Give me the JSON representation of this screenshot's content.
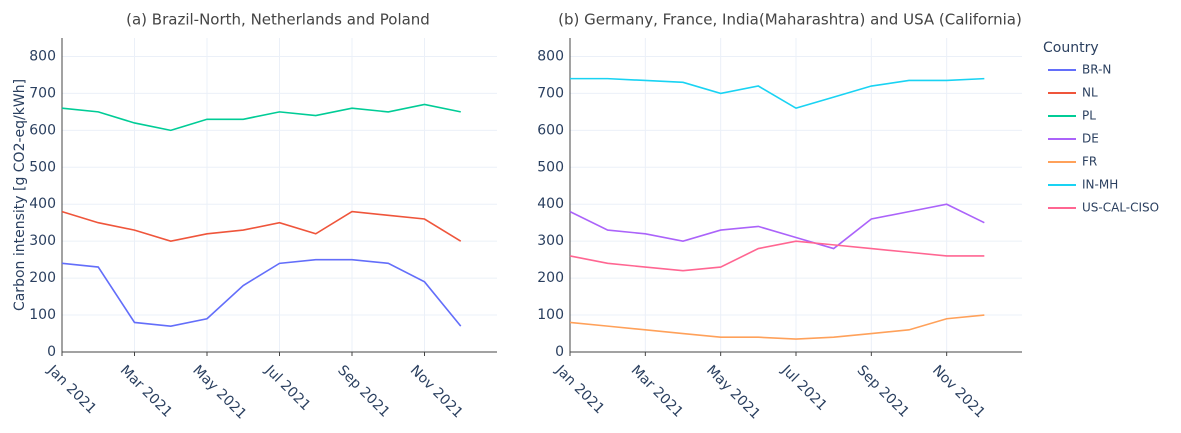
{
  "chart_data": [
    {
      "type": "line",
      "title": "(a) Brazil-North, Netherlands and Poland",
      "y_label": "Carbon intensity [g CO2-eq/kWh]",
      "x": [
        "2021-01",
        "2021-02",
        "2021-03",
        "2021-04",
        "2021-05",
        "2021-06",
        "2021-07",
        "2021-08",
        "2021-09",
        "2021-10",
        "2021-11",
        "2021-12"
      ],
      "xlim": [
        "2021-01",
        "2021-12"
      ],
      "xticks": [
        {
          "value": "2021-01",
          "label": "Jan 2021"
        },
        {
          "value": "2021-03",
          "label": "Mar 2021"
        },
        {
          "value": "2021-05",
          "label": "May 2021"
        },
        {
          "value": "2021-07",
          "label": "Jul 2021"
        },
        {
          "value": "2021-09",
          "label": "Sep 2021"
        },
        {
          "value": "2021-11",
          "label": "Nov 2021"
        }
      ],
      "ylim": [
        0,
        850
      ],
      "yticks": [
        0,
        100,
        200,
        300,
        400,
        500,
        600,
        700,
        800
      ],
      "grid": true,
      "series": [
        {
          "name": "BR-N",
          "color": "#636efa",
          "values": [
            240,
            230,
            80,
            70,
            90,
            180,
            240,
            250,
            250,
            240,
            190,
            70
          ]
        },
        {
          "name": "NL",
          "color": "#ef553b",
          "values": [
            380,
            350,
            330,
            300,
            320,
            330,
            350,
            320,
            380,
            370,
            360,
            300
          ]
        },
        {
          "name": "PL",
          "color": "#00cc96",
          "values": [
            660,
            650,
            620,
            600,
            630,
            630,
            650,
            640,
            660,
            650,
            670,
            650
          ]
        }
      ]
    },
    {
      "type": "line",
      "title": "(b) Germany, France, India(Maharashtra) and USA (California)",
      "legend_title": "Country",
      "legend": "right",
      "x": [
        "2021-01",
        "2021-02",
        "2021-03",
        "2021-04",
        "2021-05",
        "2021-06",
        "2021-07",
        "2021-08",
        "2021-09",
        "2021-10",
        "2021-11",
        "2021-12"
      ],
      "xlim": [
        "2021-01",
        "2021-12"
      ],
      "xticks": [
        {
          "value": "2021-01",
          "label": "Jan 2021"
        },
        {
          "value": "2021-03",
          "label": "Mar 2021"
        },
        {
          "value": "2021-05",
          "label": "May 2021"
        },
        {
          "value": "2021-07",
          "label": "Jul 2021"
        },
        {
          "value": "2021-09",
          "label": "Sep 2021"
        },
        {
          "value": "2021-11",
          "label": "Nov 2021"
        }
      ],
      "ylim": [
        0,
        850
      ],
      "yticks": [
        0,
        100,
        200,
        300,
        400,
        500,
        600,
        700,
        800
      ],
      "grid": true,
      "series": [
        {
          "name": "DE",
          "color": "#ab63fa",
          "values": [
            380,
            330,
            320,
            300,
            330,
            340,
            310,
            280,
            360,
            380,
            400,
            350
          ]
        },
        {
          "name": "FR",
          "color": "#ffa15a",
          "values": [
            80,
            70,
            60,
            50,
            40,
            40,
            35,
            40,
            50,
            60,
            90,
            100
          ]
        },
        {
          "name": "IN-MH",
          "color": "#19d3f3",
          "values": [
            740,
            740,
            735,
            730,
            700,
            720,
            660,
            690,
            720,
            735,
            735,
            740
          ]
        },
        {
          "name": "US-CAL-CISO",
          "color": "#ff6692",
          "values": [
            260,
            240,
            230,
            220,
            230,
            280,
            300,
            290,
            280,
            270,
            260,
            260
          ]
        }
      ]
    }
  ]
}
